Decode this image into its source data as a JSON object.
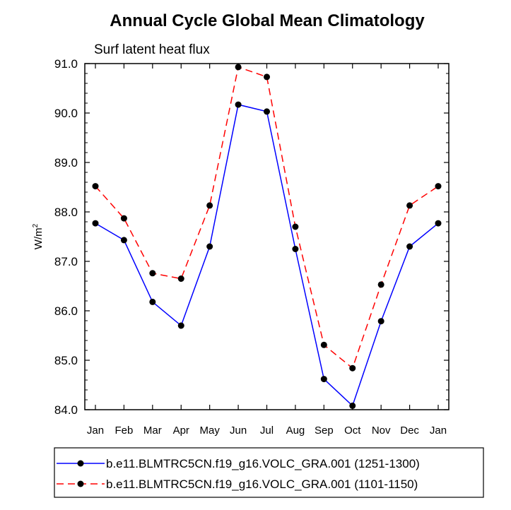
{
  "chart_data": {
    "type": "line",
    "title": "Annual Cycle Global Mean Climatology",
    "subtitle": "Surf latent heat flux",
    "ylabel_base": "W/m",
    "ylabel_sup": "2",
    "xlabel": "",
    "categories": [
      "Jan",
      "Feb",
      "Mar",
      "Apr",
      "May",
      "Jun",
      "Jul",
      "Aug",
      "Sep",
      "Oct",
      "Nov",
      "Dec",
      "Jan"
    ],
    "ylim": [
      84.0,
      91.0
    ],
    "yticks": [
      "84.0",
      "85.0",
      "86.0",
      "87.0",
      "88.0",
      "89.0",
      "90.0",
      "91.0"
    ],
    "grid": false,
    "series": [
      {
        "name": "b.e11.BLMTRC5CN.f19_g16.VOLC_GRA.001 (1251-1300)",
        "color": "#0000ff",
        "dash": "solid",
        "values": [
          87.77,
          87.43,
          86.18,
          85.7,
          87.3,
          90.17,
          90.03,
          87.25,
          84.62,
          84.08,
          85.79,
          87.3,
          87.77
        ]
      },
      {
        "name": "b.e11.BLMTRC5CN.f19_g16.VOLC_GRA.001 (1101-1150)",
        "color": "#ff0000",
        "dash": "dashed",
        "values": [
          88.52,
          87.87,
          86.76,
          86.65,
          88.13,
          90.93,
          90.73,
          87.7,
          85.31,
          84.84,
          86.53,
          88.13,
          88.52
        ]
      }
    ],
    "legend_position": "bottom"
  }
}
